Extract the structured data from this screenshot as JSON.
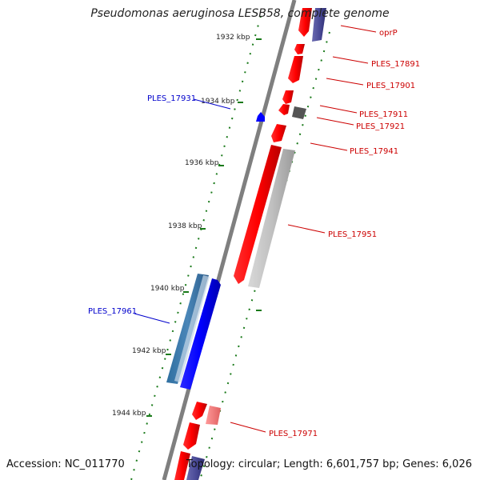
{
  "title": "Pseudomonas aeruginosa LESB58, complete genome",
  "footer": {
    "accession": "Accession: NC_011770",
    "topology": "Topology: circular; Length: 6,601,757 bp; Genes: 6,026"
  },
  "ticks": [
    "1932 kbp",
    "1934 kbp",
    "1936 kbp",
    "1938 kbp",
    "1940 kbp",
    "1942 kbp",
    "1944 kbp"
  ],
  "genes": [
    {
      "label": "oprP",
      "strand": "plus",
      "color": "#cc0000"
    },
    {
      "label": "PLES_17891",
      "strand": "plus",
      "color": "#cc0000"
    },
    {
      "label": "PLES_17901",
      "strand": "plus",
      "color": "#cc0000"
    },
    {
      "label": "PLES_17911",
      "strand": "plus",
      "color": "#cc0000"
    },
    {
      "label": "PLES_17921",
      "strand": "plus",
      "color": "#cc0000"
    },
    {
      "label": "PLES_17931",
      "strand": "minus",
      "color": "#0000cc"
    },
    {
      "label": "PLES_17941",
      "strand": "plus",
      "color": "#cc0000"
    },
    {
      "label": "PLES_17951",
      "strand": "plus",
      "color": "#cc0000"
    },
    {
      "label": "PLES_17961",
      "strand": "minus",
      "color": "#0000cc"
    },
    {
      "label": "PLES_17971",
      "strand": "plus",
      "color": "#cc0000"
    }
  ],
  "colors": {
    "forward": "#ff0000",
    "reverse": "#0000ff",
    "tick": "#1a7a1a",
    "backbone": "#7f7f7f"
  }
}
